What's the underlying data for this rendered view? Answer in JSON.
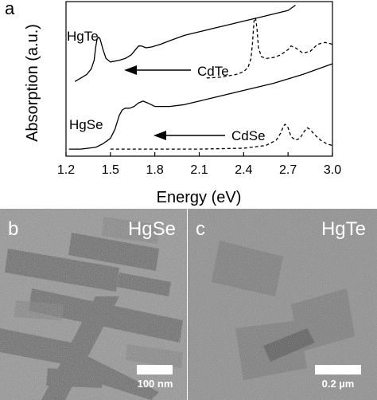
{
  "panel_a": {
    "letter": "a",
    "chart_data": {
      "type": "line",
      "xlabel": "Energy (eV)",
      "ylabel": "Absorption (a.u.)",
      "xlim": [
        1.2,
        3.0
      ],
      "x_ticks": [
        "1.2",
        "1.5",
        "1.8",
        "2.1",
        "2.4",
        "2.7",
        "3.0"
      ],
      "annotations": {
        "hgte": "HgTe",
        "cdte": "CdTe",
        "hgse": "HgSe",
        "cdse": "CdSe"
      },
      "series": [
        {
          "name": "HgTe",
          "style": "solid",
          "x": [
            1.26,
            1.3,
            1.34,
            1.37,
            1.39,
            1.4,
            1.41,
            1.42,
            1.43,
            1.45,
            1.47,
            1.5,
            1.53,
            1.56,
            1.6,
            1.64,
            1.67,
            1.69,
            1.71,
            1.74,
            1.78,
            1.84,
            1.9,
            2.0,
            2.1,
            2.2,
            2.3,
            2.4,
            2.5,
            2.6,
            2.7,
            2.75
          ],
          "y": [
            0.6,
            0.62,
            0.64,
            0.67,
            0.72,
            0.79,
            0.84,
            0.85,
            0.84,
            0.78,
            0.73,
            0.71,
            0.715,
            0.72,
            0.73,
            0.75,
            0.78,
            0.8,
            0.8,
            0.79,
            0.795,
            0.81,
            0.83,
            0.86,
            0.88,
            0.9,
            0.92,
            0.94,
            0.96,
            0.98,
            1.0,
            1.03
          ]
        },
        {
          "name": "CdTe",
          "style": "dashed",
          "x": [
            2.15,
            2.25,
            2.35,
            2.4,
            2.43,
            2.45,
            2.46,
            2.47,
            2.48,
            2.49,
            2.5,
            2.52,
            2.55,
            2.6,
            2.65,
            2.7,
            2.72,
            2.75,
            2.8,
            2.85,
            2.9,
            2.95,
            3.0
          ],
          "y": [
            0.62,
            0.625,
            0.64,
            0.655,
            0.68,
            0.73,
            0.82,
            0.94,
            0.96,
            0.9,
            0.79,
            0.74,
            0.73,
            0.735,
            0.75,
            0.78,
            0.8,
            0.79,
            0.76,
            0.77,
            0.81,
            0.82,
            0.81
          ]
        },
        {
          "name": "HgSe",
          "style": "solid",
          "x": [
            1.22,
            1.3,
            1.4,
            1.45,
            1.5,
            1.53,
            1.56,
            1.58,
            1.6,
            1.63,
            1.66,
            1.69,
            1.72,
            1.75,
            1.8,
            1.9,
            2.0,
            2.2,
            2.4,
            2.6,
            2.8,
            3.0
          ],
          "y": [
            0.22,
            0.22,
            0.23,
            0.25,
            0.28,
            0.33,
            0.41,
            0.44,
            0.45,
            0.45,
            0.46,
            0.48,
            0.49,
            0.48,
            0.46,
            0.46,
            0.47,
            0.51,
            0.55,
            0.59,
            0.64,
            0.7
          ]
        },
        {
          "name": "CdSe",
          "style": "dashed",
          "x": [
            1.5,
            1.8,
            2.1,
            2.4,
            2.55,
            2.62,
            2.65,
            2.67,
            2.68,
            2.7,
            2.72,
            2.75,
            2.78,
            2.81,
            2.83,
            2.85,
            2.88,
            2.92,
            2.96,
            3.0
          ],
          "y": [
            0.22,
            0.22,
            0.22,
            0.225,
            0.24,
            0.27,
            0.31,
            0.35,
            0.36,
            0.34,
            0.29,
            0.27,
            0.28,
            0.32,
            0.34,
            0.33,
            0.3,
            0.27,
            0.25,
            0.24
          ]
        }
      ],
      "arrows": [
        {
          "from": "cdte",
          "points_to": "hgte"
        },
        {
          "from": "cdse",
          "points_to": "hgse"
        }
      ]
    }
  },
  "panel_b": {
    "letter": "b",
    "title": "HgSe",
    "scale_bar": "100 nm"
  },
  "panel_c": {
    "letter": "c",
    "title": "HgTe",
    "scale_bar": "0.2 µm"
  }
}
